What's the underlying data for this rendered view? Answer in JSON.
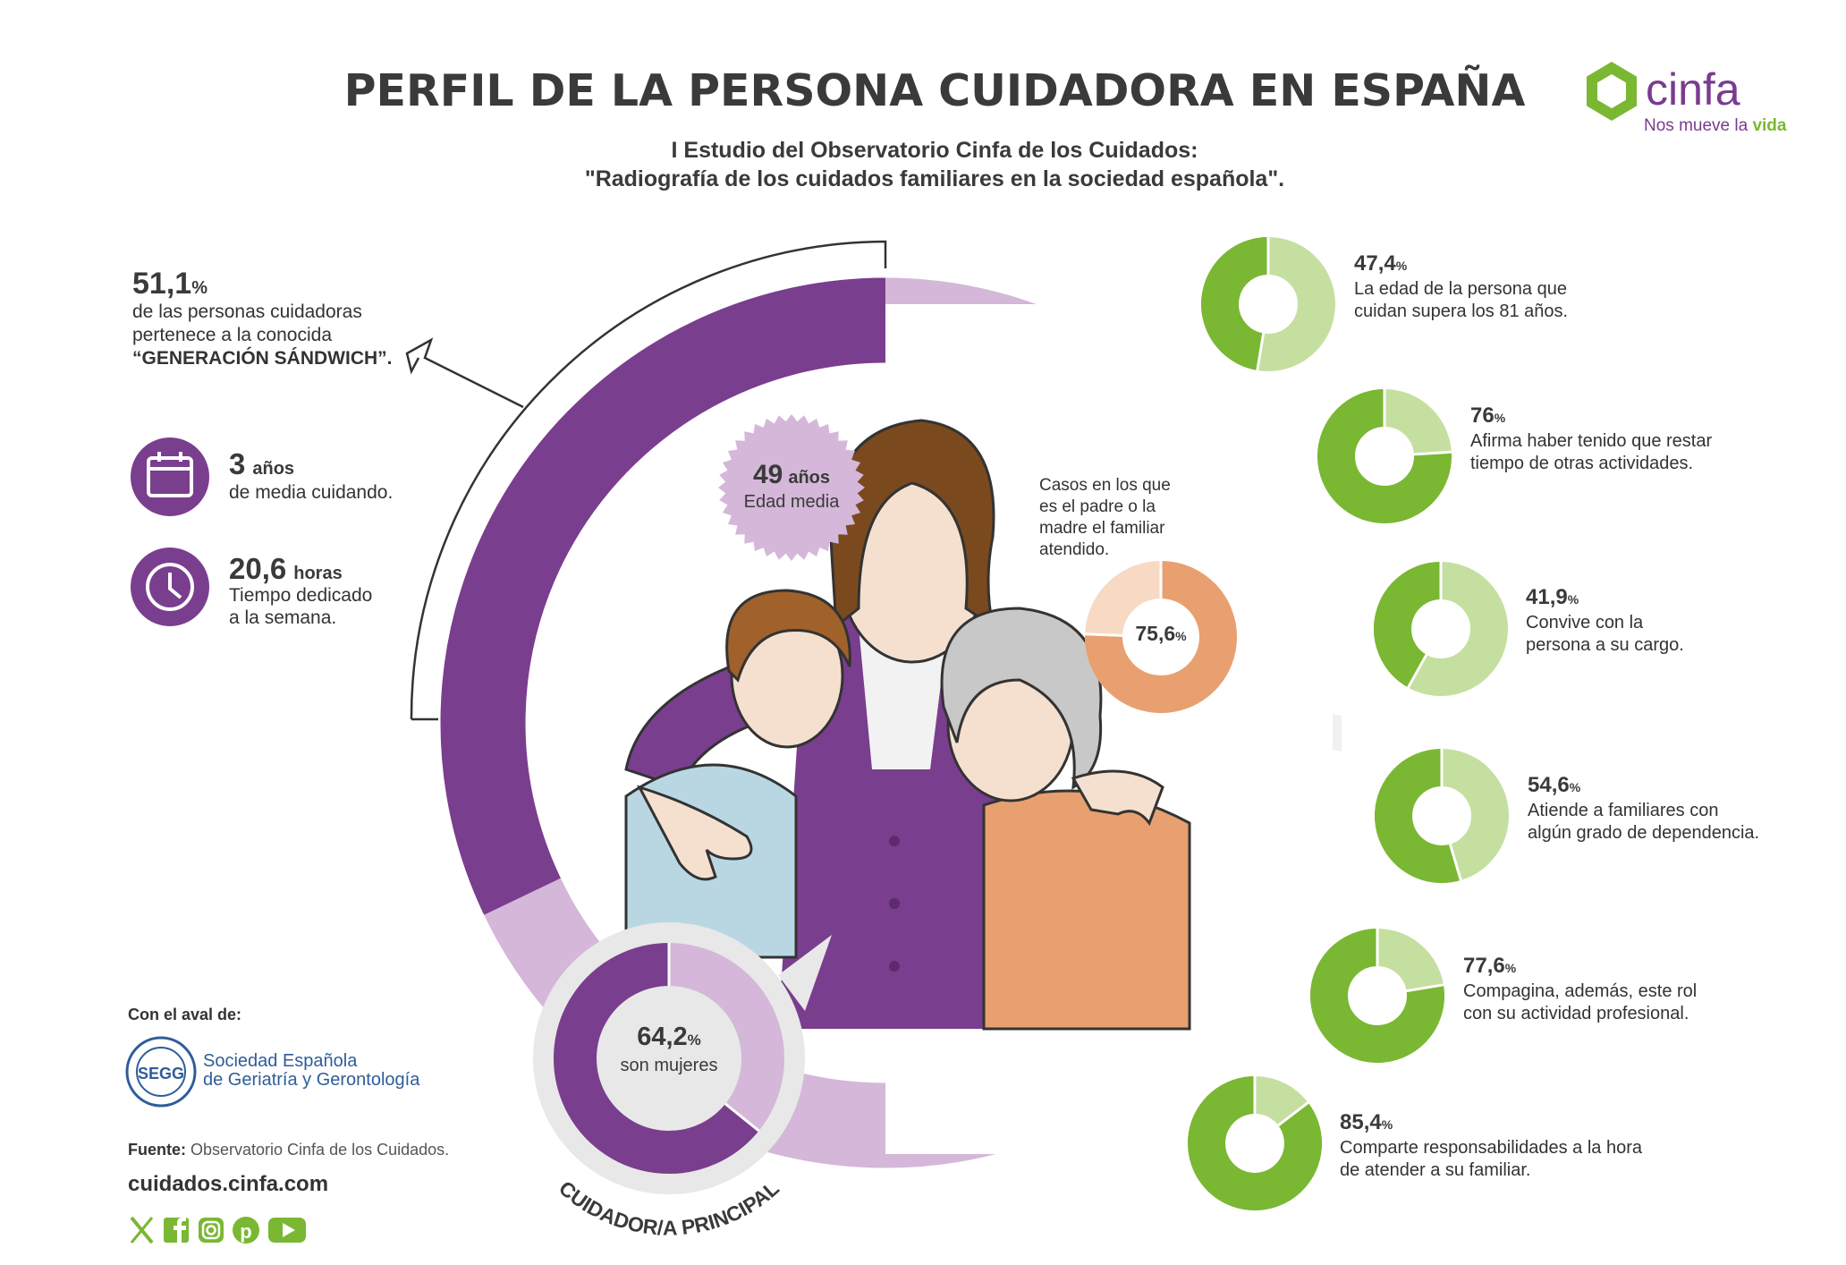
{
  "header": {
    "title": "PERFIL DE LA PERSONA CUIDADORA EN ESPAÑA",
    "subtitle_line1": "I Estudio del Observatorio Cinfa de los Cuidados:",
    "subtitle_line2": "\"Radiografía de los cuidados familiares en la sociedad española\"."
  },
  "brand": {
    "name": "cinfa",
    "tagline_prefix": "Nos mueve la ",
    "tagline_highlight": "vida",
    "color": "#7ab733",
    "accent": "#7a3b8f"
  },
  "colors": {
    "purple": "#7a3e8e",
    "purple_light": "#d4b7d9",
    "green": "#7ab733",
    "green_light": "#c5dfa0",
    "orange": "#e8a070",
    "orange_light": "#f7d9c4"
  },
  "left_stats": {
    "sandwich": {
      "value": "51,1",
      "unit": "%",
      "line1": "de las personas cuidadoras",
      "line2": "pertenece a la conocida",
      "line3": "“GENERACIÓN SÁNDWICH”."
    },
    "years": {
      "icon": "calendar-icon",
      "value": "3",
      "unit": "años",
      "label": "de media cuidando."
    },
    "hours": {
      "icon": "clock-icon",
      "value": "20,6",
      "unit": "horas",
      "line1": "Tiempo dedicado",
      "line2": "a la semana."
    }
  },
  "center": {
    "age_badge": {
      "value": "49",
      "unit": "años",
      "label": "Edad media"
    },
    "parent": {
      "text_line1": "Casos en los que",
      "text_line2": "es el padre o la",
      "text_line3": "madre el familiar",
      "text_line4": "atendido.",
      "value": "75,6",
      "unit": "%",
      "fraction": 0.756
    },
    "women": {
      "value": "64,2",
      "unit": "%",
      "label": "son mujeres",
      "fraction": 0.642
    },
    "arc_label": "CUIDADOR/A PRINCIPAL",
    "arc_fraction": 0.642
  },
  "right_stats": [
    {
      "value": "47,4",
      "unit": "%",
      "fraction": 0.474,
      "line1": "La edad de la persona que",
      "line2": "cuidan supera los 81 años."
    },
    {
      "value": "76",
      "unit": "%",
      "fraction": 0.76,
      "line1": "Afirma haber tenido que restar",
      "line2": "tiempo de otras actividades."
    },
    {
      "value": "41,9",
      "unit": "%",
      "fraction": 0.419,
      "line1": "Convive con la",
      "line2": "persona a su cargo."
    },
    {
      "value": "54,6",
      "unit": "%",
      "fraction": 0.546,
      "line1": "Atiende a familiares con",
      "line2": "algún grado de dependencia."
    },
    {
      "value": "77,6",
      "unit": "%",
      "fraction": 0.776,
      "line1": "Compagina, además, este rol",
      "line2": "con su actividad profesional."
    },
    {
      "value": "85,4",
      "unit": "%",
      "fraction": 0.854,
      "line1": "Comparte responsabilidades a la hora",
      "line2": "de atender a su familiar."
    }
  ],
  "footer": {
    "endorsed_label": "Con el aval de:",
    "society_line1": "Sociedad Española",
    "society_line2": "de Geriatría y Gerontología",
    "seal_letters": "SEGG",
    "source_label": "Fuente:",
    "source_text": " Observatorio Cinfa de los Cuidados.",
    "website": "cuidados.cinfa.com",
    "social_icons": [
      "x-icon",
      "facebook-icon",
      "instagram-icon",
      "pinterest-icon",
      "youtube-icon"
    ]
  }
}
